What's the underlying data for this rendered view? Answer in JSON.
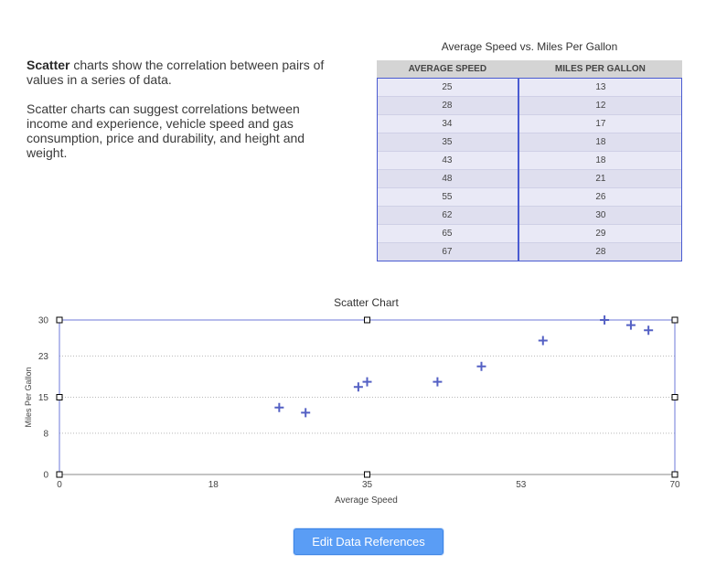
{
  "intro": {
    "p1_bold": "Scatter",
    "p1_rest": " charts show the correlation between pairs of values in a series of data.",
    "p2": "Scatter charts can suggest correlations between income and experience, vehicle speed and gas consumption, price and durability, and height and weight."
  },
  "table": {
    "title": "Average Speed vs. Miles Per Gallon",
    "headers": [
      "AVERAGE SPEED",
      "MILES PER GALLON"
    ],
    "rows": [
      [
        "25",
        "13"
      ],
      [
        "28",
        "12"
      ],
      [
        "34",
        "17"
      ],
      [
        "35",
        "18"
      ],
      [
        "43",
        "18"
      ],
      [
        "48",
        "21"
      ],
      [
        "55",
        "26"
      ],
      [
        "62",
        "30"
      ],
      [
        "65",
        "29"
      ],
      [
        "67",
        "28"
      ]
    ]
  },
  "chart_data": {
    "type": "scatter",
    "title": "Scatter Chart",
    "xlabel": "Average Speed",
    "ylabel": "Miles Per Gallon",
    "xlim": [
      0,
      70
    ],
    "ylim": [
      0,
      30
    ],
    "x_ticks": [
      "0",
      "18",
      "35",
      "53",
      "70"
    ],
    "y_ticks": [
      "0",
      "8",
      "15",
      "23",
      "30"
    ],
    "points": [
      [
        25,
        13
      ],
      [
        28,
        12
      ],
      [
        34,
        17
      ],
      [
        35,
        18
      ],
      [
        43,
        18
      ],
      [
        48,
        21
      ],
      [
        55,
        26
      ],
      [
        62,
        30
      ],
      [
        65,
        29
      ],
      [
        67,
        28
      ]
    ],
    "marker_color": "#5460c4",
    "grid": true
  },
  "button": {
    "label": "Edit Data References"
  }
}
